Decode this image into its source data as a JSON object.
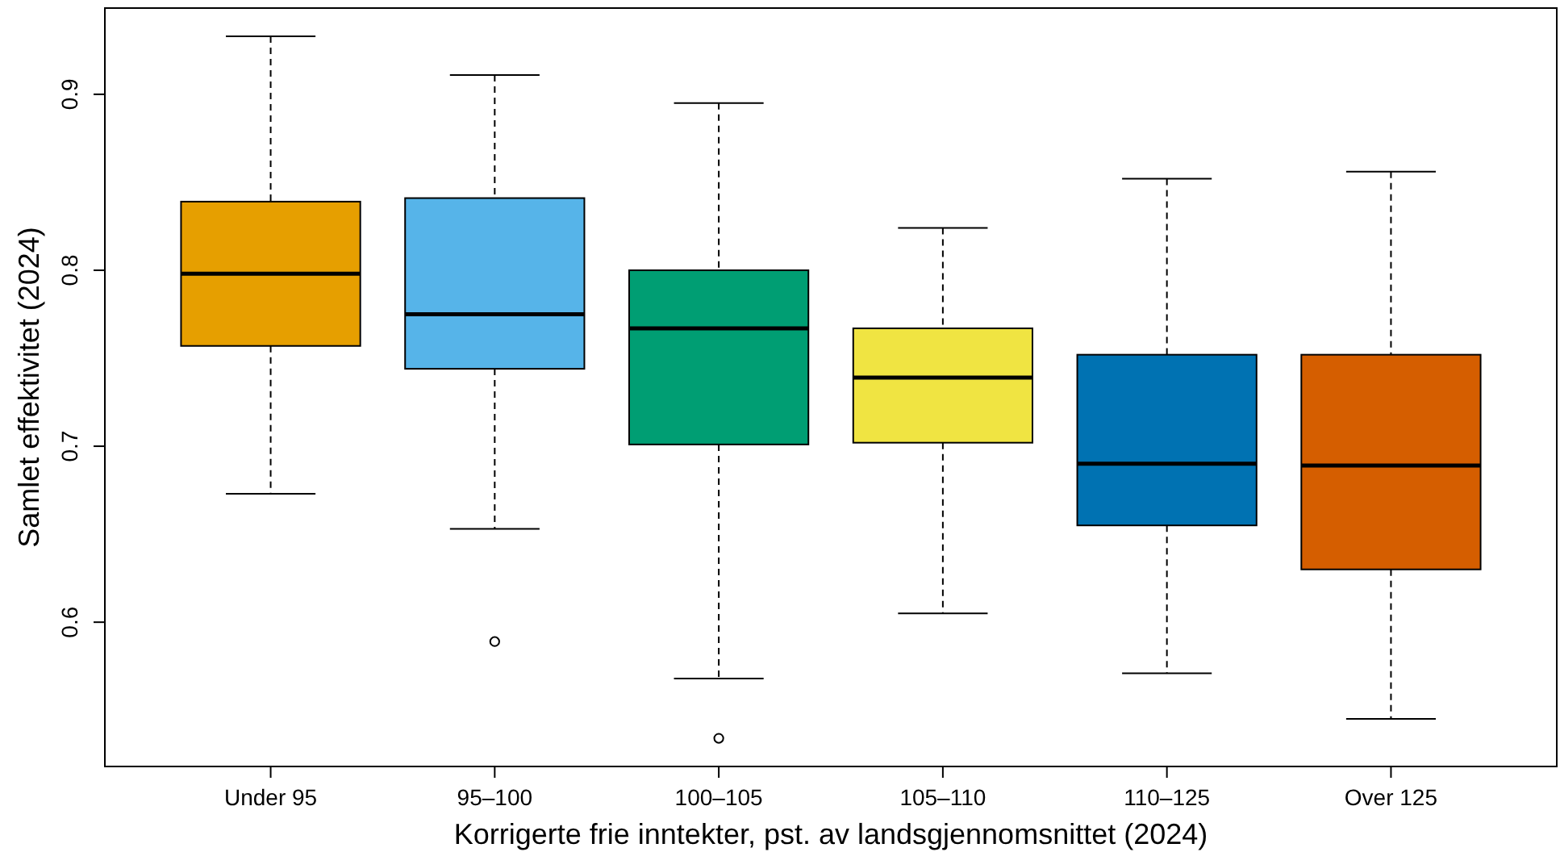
{
  "chart_data": {
    "type": "box",
    "xlabel": "Korrigerte frie inntekter, pst. av landsgjennomsnittet (2024)",
    "ylabel": "Samlet effektivitet (2024)",
    "categories": [
      "Under 95",
      "95–100",
      "100–105",
      "105–110",
      "110–125",
      "Over 125"
    ],
    "colors": [
      "#e69f00",
      "#56b4e9",
      "#009e73",
      "#f0e442",
      "#0072b2",
      "#d55e00"
    ],
    "boxes": [
      {
        "low": 0.673,
        "q1": 0.757,
        "median": 0.798,
        "q3": 0.839,
        "high": 0.933
      },
      {
        "low": 0.653,
        "q1": 0.744,
        "median": 0.775,
        "q3": 0.841,
        "high": 0.911,
        "outliers": [
          0.589
        ]
      },
      {
        "low": 0.568,
        "q1": 0.701,
        "median": 0.767,
        "q3": 0.8,
        "high": 0.895,
        "outliers": [
          0.534
        ]
      },
      {
        "low": 0.605,
        "q1": 0.702,
        "median": 0.739,
        "q3": 0.767,
        "high": 0.824
      },
      {
        "low": 0.571,
        "q1": 0.655,
        "median": 0.69,
        "q3": 0.752,
        "high": 0.852
      },
      {
        "low": 0.545,
        "q1": 0.63,
        "median": 0.689,
        "q3": 0.752,
        "high": 0.856
      }
    ],
    "ylim": [
      0.518,
      0.949
    ],
    "yticks": [
      0.6,
      0.7,
      0.8,
      0.9
    ],
    "grid": false
  }
}
